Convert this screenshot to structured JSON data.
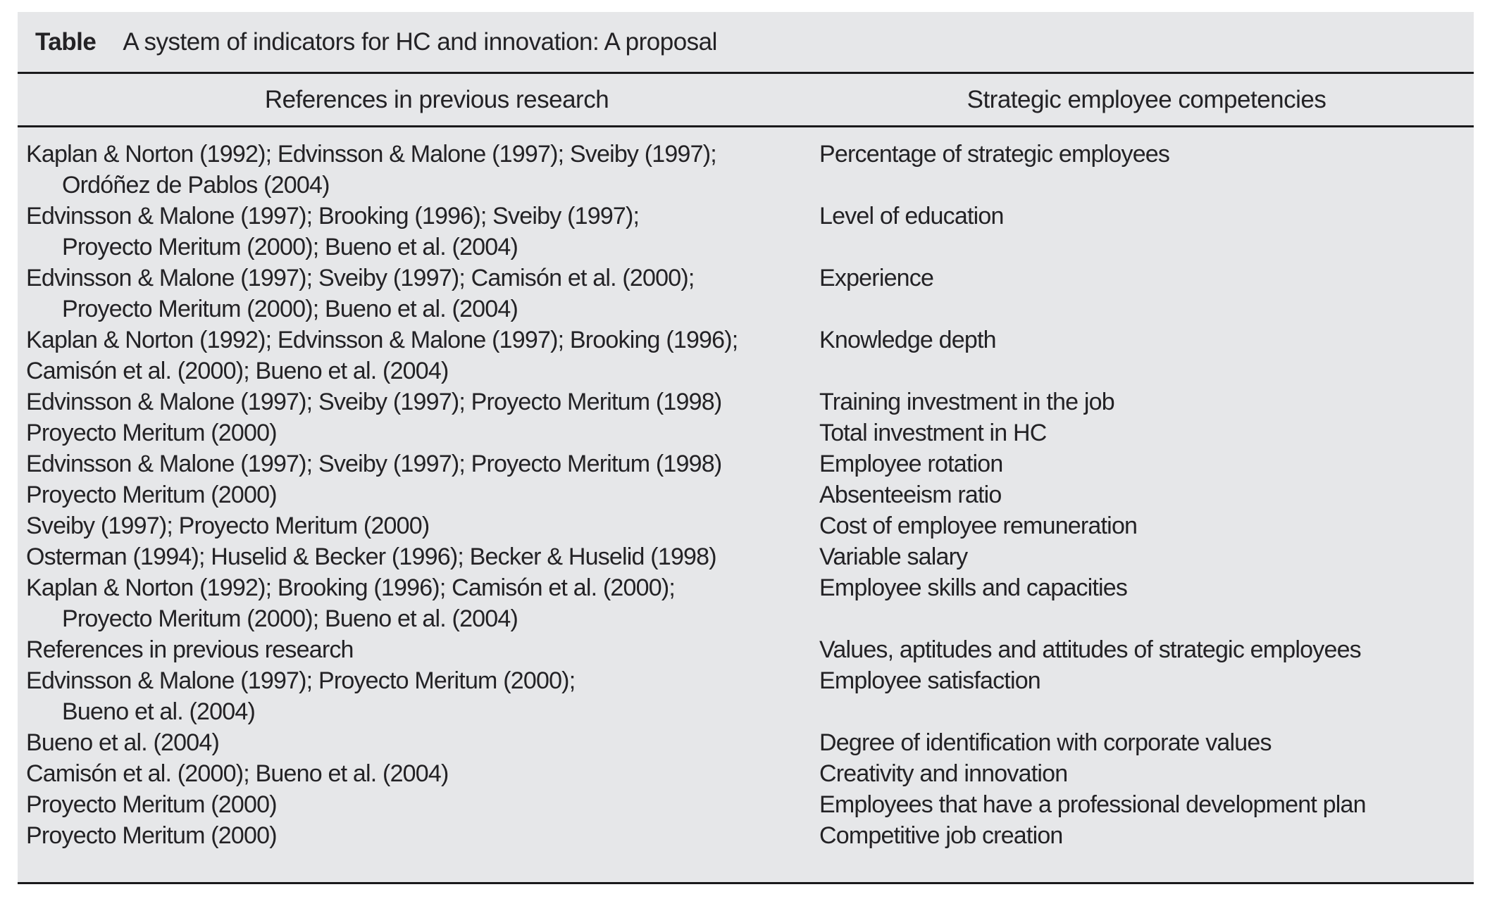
{
  "colors": {
    "table_background": "#e6e7e9",
    "rule": "#1a1a1c",
    "text": "#232225",
    "page_background": "#ffffff"
  },
  "table": {
    "label": "Table",
    "title": "A system of indicators for HC and innovation: A proposal",
    "columns": [
      "References in previous research",
      "Strategic employee competencies"
    ],
    "rows": [
      {
        "references": [
          {
            "text": "Kaplan & Norton (1992); Edvinsson & Malone (1997); Sveiby (1997);",
            "indent": false
          },
          {
            "text": "Ordóñez de Pablos (2004)",
            "indent": true
          }
        ],
        "competency": "Percentage of strategic employees"
      },
      {
        "references": [
          {
            "text": "Edvinsson & Malone (1997); Brooking (1996); Sveiby (1997);",
            "indent": false
          },
          {
            "text": "Proyecto Meritum (2000); Bueno et al. (2004)",
            "indent": true
          }
        ],
        "competency": "Level of education"
      },
      {
        "references": [
          {
            "text": "Edvinsson & Malone (1997); Sveiby (1997); Camisón et al. (2000);",
            "indent": false
          },
          {
            "text": "Proyecto Meritum (2000); Bueno et al. (2004)",
            "indent": true
          }
        ],
        "competency": "Experience"
      },
      {
        "references": [
          {
            "text": "Kaplan & Norton (1992); Edvinsson & Malone (1997); Brooking (1996);",
            "indent": false
          },
          {
            "text": "Camisón et al. (2000); Bueno et al. (2004)",
            "indent": false
          }
        ],
        "competency": "Knowledge depth"
      },
      {
        "references": [
          {
            "text": "Edvinsson & Malone (1997); Sveiby (1997); Proyecto Meritum (1998)",
            "indent": false
          }
        ],
        "competency": "Training investment in the job"
      },
      {
        "references": [
          {
            "text": "Proyecto Meritum (2000)",
            "indent": false
          }
        ],
        "competency": "Total investment in HC"
      },
      {
        "references": [
          {
            "text": "Edvinsson & Malone (1997); Sveiby (1997); Proyecto Meritum (1998)",
            "indent": false
          }
        ],
        "competency": "Employee rotation"
      },
      {
        "references": [
          {
            "text": "Proyecto Meritum (2000)",
            "indent": false
          }
        ],
        "competency": "Absenteeism ratio"
      },
      {
        "references": [
          {
            "text": "Sveiby (1997); Proyecto Meritum (2000)",
            "indent": false
          }
        ],
        "competency": "Cost of employee remuneration"
      },
      {
        "references": [
          {
            "text": "Osterman (1994); Huselid & Becker (1996); Becker & Huselid (1998)",
            "indent": false
          }
        ],
        "competency": "Variable salary"
      },
      {
        "references": [
          {
            "text": "Kaplan & Norton (1992); Brooking (1996); Camisón et al. (2000);",
            "indent": false
          },
          {
            "text": "Proyecto Meritum (2000); Bueno et al. (2004)",
            "indent": true
          }
        ],
        "competency": "Employee skills and capacities"
      },
      {
        "references": [
          {
            "text": "References in previous research",
            "indent": false
          }
        ],
        "competency": "Values, aptitudes and attitudes of strategic employees"
      },
      {
        "references": [
          {
            "text": "Edvinsson & Malone (1997); Proyecto Meritum (2000);",
            "indent": false
          },
          {
            "text": "Bueno et al. (2004)",
            "indent": true
          }
        ],
        "competency": "Employee satisfaction"
      },
      {
        "references": [
          {
            "text": "Bueno et al. (2004)",
            "indent": false
          }
        ],
        "competency": "Degree of identification with corporate values"
      },
      {
        "references": [
          {
            "text": "Camisón et al. (2000); Bueno et al. (2004)",
            "indent": false
          }
        ],
        "competency": "Creativity and innovation"
      },
      {
        "references": [
          {
            "text": "Proyecto Meritum (2000)",
            "indent": false
          }
        ],
        "competency": "Employees that have a professional development plan"
      },
      {
        "references": [
          {
            "text": "Proyecto Meritum (2000)",
            "indent": false
          }
        ],
        "competency": "Competitive job creation"
      }
    ]
  }
}
